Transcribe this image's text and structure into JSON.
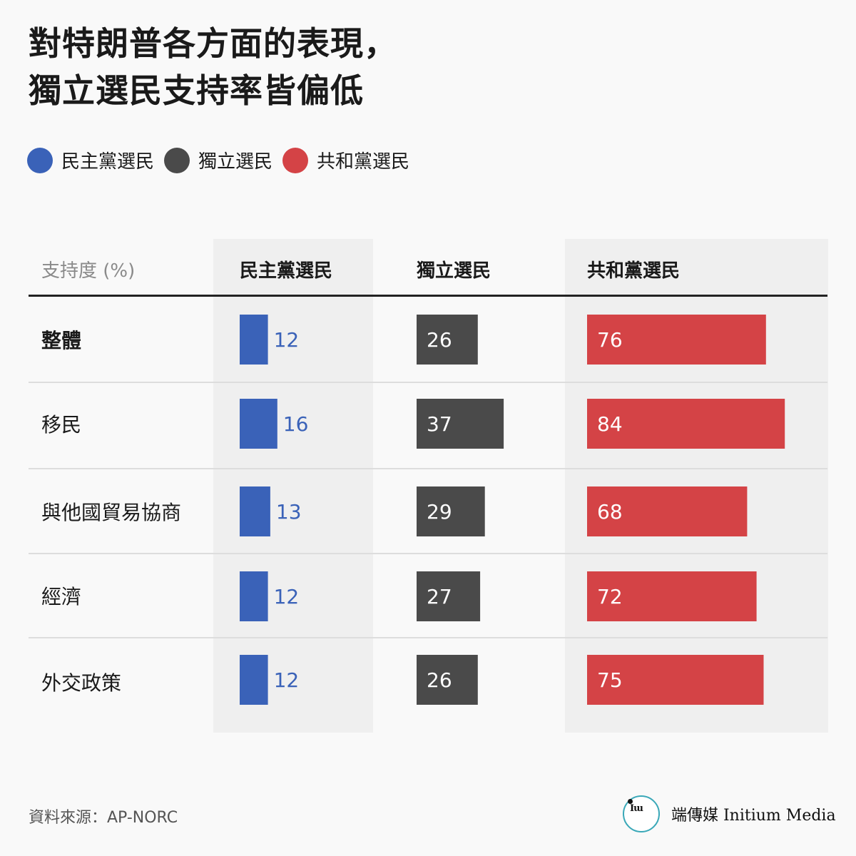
{
  "title_lines": [
    "對特朗普各方面的表現，",
    "獨立選民支持率皆偏低"
  ],
  "legend": [
    {
      "label": "民主黨選民",
      "color": "#3a62b8"
    },
    {
      "label": "獨立選民",
      "color": "#4a4a4a"
    },
    {
      "label": "共和黨選民",
      "color": "#d44346"
    }
  ],
  "table": {
    "first_header": "支持度 (%)",
    "column_headers": [
      "民主黨選民",
      "獨立選民",
      "共和黨選民"
    ]
  },
  "chart_data": {
    "type": "bar",
    "categories": [
      "整體",
      "移民",
      "與他國貿易協商",
      "經濟",
      "外交政策"
    ],
    "series": [
      {
        "name": "民主黨選民",
        "values": [
          12,
          16,
          13,
          12,
          12
        ],
        "color": "#3a62b8"
      },
      {
        "name": "獨立選民",
        "values": [
          26,
          37,
          29,
          27,
          26
        ],
        "color": "#4a4a4a"
      },
      {
        "name": "共和黨選民",
        "values": [
          76,
          84,
          68,
          72,
          75
        ],
        "color": "#d44346"
      }
    ],
    "unit": "%"
  },
  "footer": {
    "source": "資料來源：AP-NORC",
    "brand_name": "端傳媒 Initium Media",
    "logo_mark": "Iɯ"
  }
}
